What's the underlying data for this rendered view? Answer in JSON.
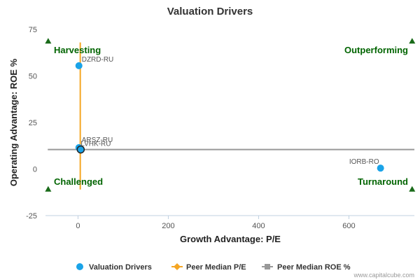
{
  "chart_data": {
    "type": "scatter",
    "title": "Valuation Drivers",
    "xlabel": "Growth Advantage: P/E",
    "ylabel": "Operating Advantage: ROE %",
    "xlim": [
      -72,
      745
    ],
    "ylim": [
      -25,
      75
    ],
    "xticks": [
      0,
      200,
      400,
      600
    ],
    "yticks": [
      -25,
      0,
      25,
      50,
      75
    ],
    "series": [
      {
        "name": "Valuation Drivers",
        "color": "#1aa3e8",
        "points": [
          {
            "label": "DZRD-RU",
            "x": 2,
            "y": 55.5
          },
          {
            "label": "ARSZ-RU",
            "x": 2,
            "y": 11.5
          },
          {
            "label": "LVHK-RU",
            "x": 6,
            "y": 10.5
          },
          {
            "label": "IORB-RO",
            "x": 670,
            "y": 0.5
          }
        ]
      }
    ],
    "peer_median_pe": {
      "name": "Peer Median P/E",
      "x": 5,
      "y_range": [
        -11,
        68
      ],
      "color": "#f5a623"
    },
    "peer_median_roe": {
      "name": "Peer Median ROE %",
      "y": 10.5,
      "x_range": [
        -67,
        745
      ],
      "color": "#999999"
    },
    "quadrants": [
      {
        "label": "Harvesting",
        "corner": "top-left"
      },
      {
        "label": "Outperforming",
        "corner": "top-right"
      },
      {
        "label": "Challenged",
        "corner": "bottom-left"
      },
      {
        "label": "Turnaround",
        "corner": "bottom-right"
      }
    ],
    "legend_position": "bottom-center",
    "grid": false
  },
  "credit": "www.capitalcube.com"
}
